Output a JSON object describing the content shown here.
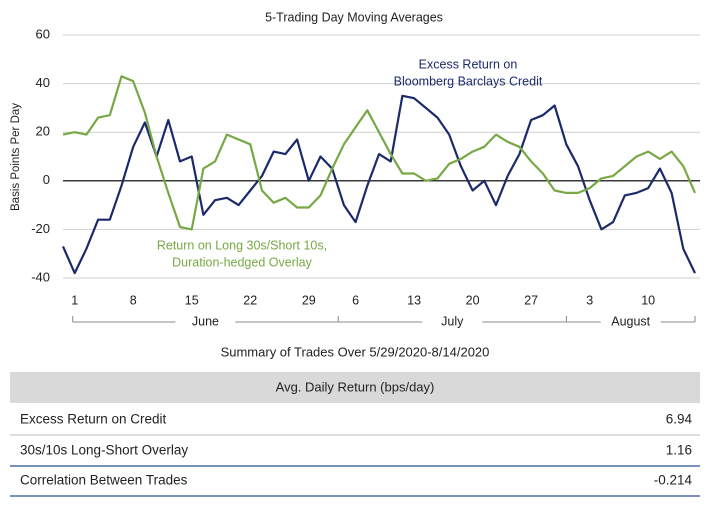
{
  "chart_data": {
    "type": "line",
    "title": "5-Trading Day Moving Averages",
    "y_label": "Basis Points Per Day",
    "categories": [
      null,
      "1",
      null,
      null,
      null,
      null,
      "8",
      null,
      null,
      null,
      null,
      "15",
      null,
      null,
      null,
      null,
      "22",
      null,
      null,
      null,
      null,
      "29",
      null,
      null,
      null,
      "6",
      null,
      null,
      null,
      null,
      "13",
      null,
      null,
      null,
      null,
      "20",
      null,
      null,
      null,
      null,
      "27",
      null,
      null,
      null,
      null,
      "3",
      null,
      null,
      null,
      null,
      "10",
      null,
      null,
      null,
      null
    ],
    "months": [
      "June",
      "July",
      "August"
    ],
    "series": [
      {
        "label": [
          "Excess Return on",
          "Bloomberg Barclays Credit"
        ],
        "color": "#1b2a6b",
        "values": [
          -27,
          -38,
          -28,
          -16,
          -16,
          -2,
          14,
          24,
          10,
          25,
          8,
          10,
          -14,
          -8,
          -7,
          -10,
          -4,
          2,
          12,
          11,
          17,
          0,
          10,
          5,
          -10,
          -17,
          -2,
          11,
          8,
          35,
          34,
          30,
          26,
          19,
          6,
          -4,
          0,
          -10,
          2,
          11,
          25,
          27,
          31,
          15,
          6,
          -8,
          -20,
          -17,
          -6,
          -5,
          -3,
          5,
          -5,
          -28,
          -38
        ]
      },
      {
        "label": [
          "Return on Long 30s/Short 10s,",
          "Duration-hedged Overlay"
        ],
        "color": "#78a846",
        "values": [
          19,
          20,
          19,
          26,
          27,
          43,
          41,
          28,
          10,
          -5,
          -19,
          -20,
          5,
          8,
          19,
          17,
          15,
          -4,
          -9,
          -7,
          -11,
          -11,
          -6,
          5,
          15,
          22,
          29,
          20,
          11,
          3,
          3,
          0,
          1,
          7,
          9,
          12,
          14,
          19,
          16,
          14,
          8,
          3,
          -4,
          -5,
          -5,
          -3,
          1,
          2,
          6,
          10,
          12,
          9,
          12,
          6,
          -5
        ]
      }
    ],
    "ylim": [
      -40,
      60
    ],
    "yticks": [
      -40,
      -20,
      0,
      20,
      40,
      60
    ],
    "grid": true
  },
  "table": {
    "title": "Summary of Trades Over 5/29/2020-8/14/2020",
    "header": "Avg. Daily Return (bps/day)",
    "rows": [
      [
        "Excess Return on Credit",
        6.94
      ],
      [
        "30s/10s Long-Short Overlay",
        1.16
      ],
      [
        "Correlation Between Trades",
        -0.214
      ]
    ]
  }
}
